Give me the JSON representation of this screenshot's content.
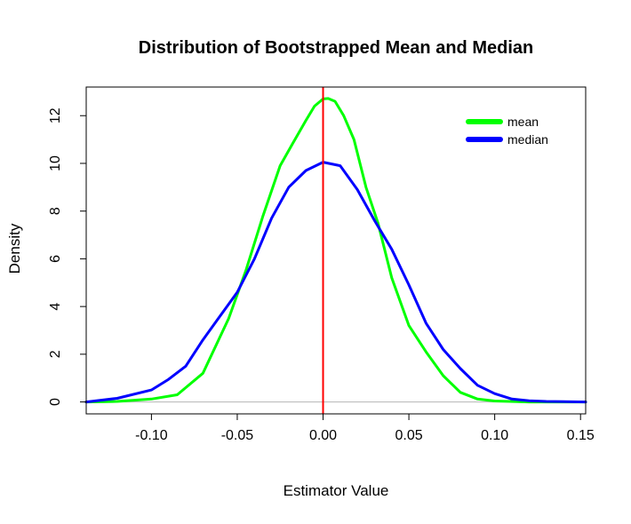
{
  "chart_data": {
    "type": "line",
    "title": "Distribution of Bootstrapped Mean and Median",
    "xlabel": "Estimator Value",
    "ylabel": "Density",
    "xlim": [
      -0.138,
      0.153
    ],
    "ylim": [
      -0.5,
      13.2
    ],
    "x_ticks": [
      -0.1,
      -0.05,
      0.0,
      0.05,
      0.1,
      0.15
    ],
    "x_tick_labels": [
      "-0.10",
      "-0.05",
      "0.00",
      "0.05",
      "0.10",
      "0.15"
    ],
    "y_ticks": [
      0,
      2,
      4,
      6,
      8,
      10,
      12
    ],
    "y_tick_labels": [
      "0",
      "2",
      "4",
      "6",
      "8",
      "10",
      "12"
    ],
    "grid": false,
    "legend_position": "top-right",
    "baseline": {
      "y": 0,
      "color": "#bebebe"
    },
    "vline": {
      "x": 0.0,
      "color": "#ff0000"
    },
    "series": [
      {
        "name": "mean",
        "color": "#00ff00",
        "x": [
          -0.138,
          -0.12,
          -0.1,
          -0.085,
          -0.07,
          -0.055,
          -0.045,
          -0.035,
          -0.025,
          -0.018,
          -0.01,
          -0.005,
          0.0,
          0.003,
          0.007,
          0.012,
          0.018,
          0.025,
          0.032,
          0.04,
          0.05,
          0.06,
          0.07,
          0.08,
          0.09,
          0.1,
          0.12,
          0.153
        ],
        "values": [
          0.0,
          0.02,
          0.12,
          0.3,
          1.2,
          3.5,
          5.5,
          7.8,
          9.9,
          10.8,
          11.8,
          12.4,
          12.7,
          12.72,
          12.6,
          12.0,
          11.0,
          9.0,
          7.5,
          5.2,
          3.2,
          2.1,
          1.1,
          0.4,
          0.12,
          0.04,
          0.0,
          0.0
        ]
      },
      {
        "name": "median",
        "color": "#0000ff",
        "x": [
          -0.138,
          -0.12,
          -0.1,
          -0.09,
          -0.08,
          -0.07,
          -0.06,
          -0.05,
          -0.04,
          -0.03,
          -0.02,
          -0.01,
          0.0,
          0.01,
          0.02,
          0.03,
          0.04,
          0.05,
          0.06,
          0.07,
          0.08,
          0.09,
          0.1,
          0.11,
          0.12,
          0.13,
          0.153
        ],
        "values": [
          0.0,
          0.15,
          0.5,
          0.95,
          1.5,
          2.6,
          3.6,
          4.6,
          6.0,
          7.7,
          9.0,
          9.7,
          10.05,
          9.9,
          8.9,
          7.6,
          6.4,
          4.9,
          3.3,
          2.2,
          1.4,
          0.7,
          0.35,
          0.12,
          0.05,
          0.02,
          0.0
        ]
      }
    ]
  }
}
